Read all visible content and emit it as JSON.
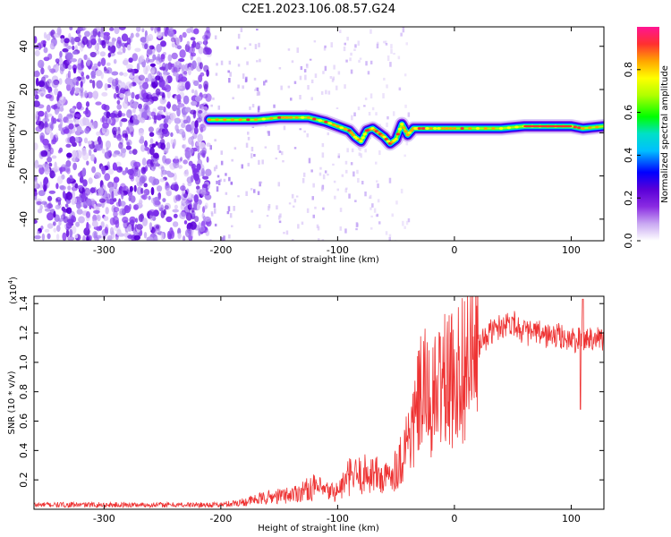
{
  "figure": {
    "title": "C2E1.2023.106.08.57.G24"
  },
  "chart_data": [
    {
      "type": "heatmap",
      "title": "C2E1.2023.106.08.57.G24",
      "xlabel": "Height of straight line (km)",
      "ylabel": "Frequency (Hz)",
      "xlim": [
        -360,
        128
      ],
      "ylim": [
        -50,
        49
      ],
      "x_ticks": [
        "-300",
        "-200",
        "-100",
        "0",
        "100"
      ],
      "y_ticks": [
        "40",
        "20",
        "0",
        "-20",
        "-40"
      ],
      "colorbar": {
        "label": "Normalized spectral amplitude",
        "range": [
          0.0,
          1.0
        ],
        "ticks": [
          "0.0",
          "0.2",
          "0.4",
          "0.6",
          "0.8"
        ],
        "colormap": [
          "#ffffff",
          "#c9a8f2",
          "#8a2be2",
          "#5a00d8",
          "#0000ff",
          "#00bfff",
          "#00e0c8",
          "#00ff00",
          "#b0ff00",
          "#ffff00",
          "#ffa500",
          "#ff3030",
          "#ff1493"
        ]
      },
      "ridge": {
        "name": "signal frequency",
        "x": [
          -210,
          -190,
          -170,
          -150,
          -140,
          -125,
          -110,
          -100,
          -90,
          -85,
          -80,
          -75,
          -70,
          -65,
          -60,
          -55,
          -50,
          -45,
          -40,
          -35,
          -30,
          -20,
          -10,
          0,
          20,
          40,
          60,
          80,
          100,
          110,
          128
        ],
        "y": [
          6,
          6,
          6,
          7,
          7,
          7,
          5,
          3,
          1,
          -2,
          -4,
          1,
          2,
          0,
          -2,
          -5,
          -3,
          4,
          -1,
          2,
          2,
          2,
          2,
          2,
          2,
          2,
          3,
          3,
          3,
          2,
          3
        ]
      }
    },
    {
      "type": "line",
      "xlabel": "Height of straight line (km)",
      "ylabel": "SNR (10 * v/v)",
      "y_multiplier": "(x10",
      "y_multiplier_exp": "4",
      "y_multiplier_close": ")",
      "xlim": [
        -360,
        128
      ],
      "ylim": [
        0,
        14500
      ],
      "x_ticks": [
        "-300",
        "-200",
        "-100",
        "0",
        "100"
      ],
      "y_ticks": [
        "1.4",
        "1.2",
        "1.0",
        "0.8",
        "0.6",
        "0.4",
        "0.2"
      ],
      "color": "#ee3333",
      "series": [
        {
          "x": [
            -360,
            -300,
            -250,
            -200,
            -180,
            -160,
            -140,
            -120,
            -110,
            -100,
            -90,
            -80,
            -70,
            -60,
            -50,
            -45,
            -40,
            -35,
            -30,
            -25,
            -20,
            -15,
            -10,
            -5,
            0,
            10,
            20,
            30,
            40,
            50,
            60,
            70,
            80,
            90,
            100,
            110,
            120,
            128
          ],
          "y": [
            300,
            300,
            300,
            300,
            500,
            800,
            1000,
            1500,
            1200,
            1200,
            2200,
            2300,
            2500,
            2000,
            2800,
            3500,
            5000,
            5500,
            7500,
            8000,
            7000,
            8000,
            9000,
            8500,
            9000,
            10000,
            11000,
            12000,
            12500,
            12800,
            12000,
            12000,
            11800,
            11800,
            11500,
            11500,
            11800,
            11500
          ]
        }
      ]
    }
  ]
}
